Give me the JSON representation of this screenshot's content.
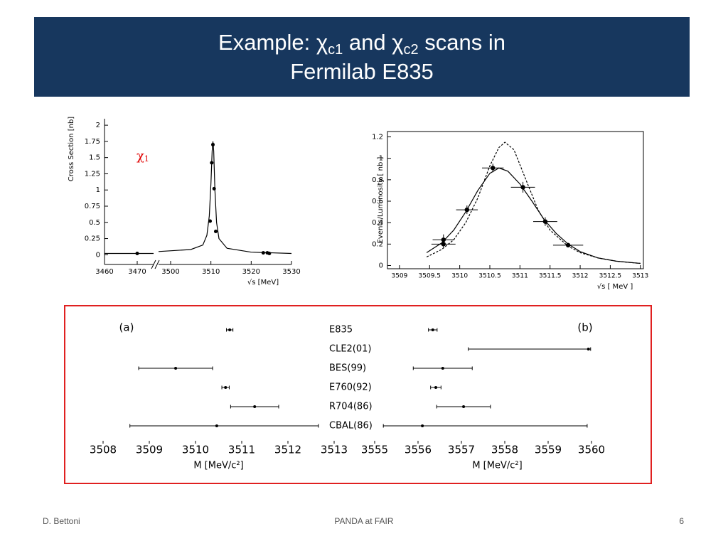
{
  "header": {
    "title": {
      "line1": [
        "Example: χ",
        "c1",
        " and χ",
        "c2",
        "  scans in"
      ],
      "line2": "Fermilab E835"
    }
  },
  "footer": {
    "author": "D. Bettoni",
    "center": "PANDA at FAIR",
    "page": "6"
  },
  "chart_data": [
    {
      "type": "scatter",
      "ylabel": "Cross Section [nb]",
      "xlabel": "√s [MeV]",
      "annotation": [
        "χ",
        "1"
      ],
      "annotation_color": "#e00000",
      "x": [
        3470,
        3509.8,
        3510.2,
        3510.5,
        3510.8,
        3511.2,
        3523,
        3524,
        3524.5
      ],
      "values": [
        0.02,
        0.52,
        1.42,
        1.7,
        1.02,
        0.36,
        0.03,
        0.03,
        0.02
      ],
      "curves": [
        {
          "style": "solid",
          "x": [
            3460,
            3475,
            null,
            3497,
            3505,
            3508,
            3509,
            3509.6,
            3510,
            3510.3,
            3510.5,
            3510.7,
            3511,
            3511.4,
            3512,
            3514,
            3520,
            3530
          ],
          "values": [
            0.02,
            0.02,
            null,
            0.05,
            0.08,
            0.15,
            0.3,
            0.6,
            1.1,
            1.6,
            1.75,
            1.6,
            1.0,
            0.5,
            0.25,
            0.1,
            0.04,
            0.02
          ]
        }
      ],
      "xlim": [
        3460,
        3530
      ],
      "xbreak": [
        3475,
        3497
      ],
      "xticks": [
        3460,
        3470,
        3500,
        3510,
        3520,
        3530
      ],
      "ylim": [
        -0.15,
        2.1
      ],
      "yticks": [
        0,
        0.25,
        0.5,
        0.75,
        1,
        1.25,
        1.5,
        1.75,
        2
      ]
    },
    {
      "type": "scatter",
      "ylabel": "Events/Luminosity [ nb ]",
      "xlabel": "√s  [ MeV ]",
      "x": [
        3509.73,
        3509.73,
        3510.12,
        3510.55,
        3511.05,
        3511.42,
        3511.8
      ],
      "values": [
        0.2,
        0.24,
        0.52,
        0.91,
        0.73,
        0.41,
        0.19
      ],
      "x_errors": [
        0.2,
        0.18,
        0.18,
        0.18,
        0.2,
        0.2,
        0.25
      ],
      "errors": [
        0.03,
        0.05,
        0.04,
        0.04,
        0.05,
        0.04,
        0.02
      ],
      "curves": [
        {
          "style": "solid",
          "x": [
            3509.45,
            3509.7,
            3509.9,
            3510.1,
            3510.3,
            3510.5,
            3510.65,
            3510.8,
            3511.0,
            3511.2,
            3511.4,
            3511.6,
            3511.8,
            3512.0,
            3512.3,
            3512.6,
            3513.0
          ],
          "values": [
            0.12,
            0.21,
            0.33,
            0.5,
            0.7,
            0.86,
            0.91,
            0.88,
            0.76,
            0.6,
            0.43,
            0.3,
            0.2,
            0.13,
            0.07,
            0.04,
            0.02
          ]
        },
        {
          "style": "dashed",
          "x": [
            3509.45,
            3509.7,
            3509.9,
            3510.1,
            3510.3,
            3510.5,
            3510.65,
            3510.75,
            3510.9,
            3511.1,
            3511.3,
            3511.5,
            3511.8,
            3512.0,
            3512.3,
            3512.6,
            3513.0
          ],
          "values": [
            0.08,
            0.15,
            0.24,
            0.4,
            0.63,
            0.93,
            1.1,
            1.15,
            1.08,
            0.8,
            0.52,
            0.33,
            0.18,
            0.12,
            0.07,
            0.04,
            0.02
          ]
        }
      ],
      "xlim": [
        3508.8,
        3513.05
      ],
      "xticks": [
        3509,
        3509.5,
        3510,
        3510.5,
        3511,
        3511.5,
        3512,
        3512.5,
        3513
      ],
      "ylim": [
        -0.03,
        1.25
      ],
      "yticks": [
        0,
        0.2,
        0.4,
        0.6,
        0.8,
        1,
        1.2
      ]
    },
    {
      "type": "errorbar",
      "categories": [
        "E835",
        "CLE2(01)",
        "BES(99)",
        "E760(92)",
        "R704(86)",
        "CBAL(86)"
      ],
      "panels": [
        {
          "label": "(a)",
          "xlabel": "M [MeV/c²]",
          "xlim": [
            3508,
            3513
          ],
          "xticks": [
            3508,
            3509,
            3510,
            3511,
            3512,
            3513
          ],
          "values": [
            3510.74,
            null,
            3509.57,
            3510.65,
            3511.28,
            3510.46
          ],
          "errors": [
            [
              0.07,
              0.07
            ],
            null,
            [
              0.8,
              0.8
            ],
            [
              0.08,
              0.08
            ],
            [
              0.52,
              0.52
            ],
            [
              1.88,
              2.2
            ]
          ]
        },
        {
          "label": "(b)",
          "xlabel": "M [MeV/c²]",
          "xlim": [
            3555,
            3560
          ],
          "xticks": [
            3555,
            3556,
            3557,
            3558,
            3559,
            3560
          ],
          "values": [
            3556.34,
            3559.93,
            3556.57,
            3556.41,
            3557.05,
            3556.1
          ],
          "errors": [
            [
              0.1,
              0.1
            ],
            [
              2.77,
              0.05
            ],
            [
              0.68,
              0.68
            ],
            [
              0.12,
              0.12
            ],
            [
              0.62,
              0.62
            ],
            [
              0.9,
              3.8
            ]
          ]
        }
      ]
    }
  ]
}
